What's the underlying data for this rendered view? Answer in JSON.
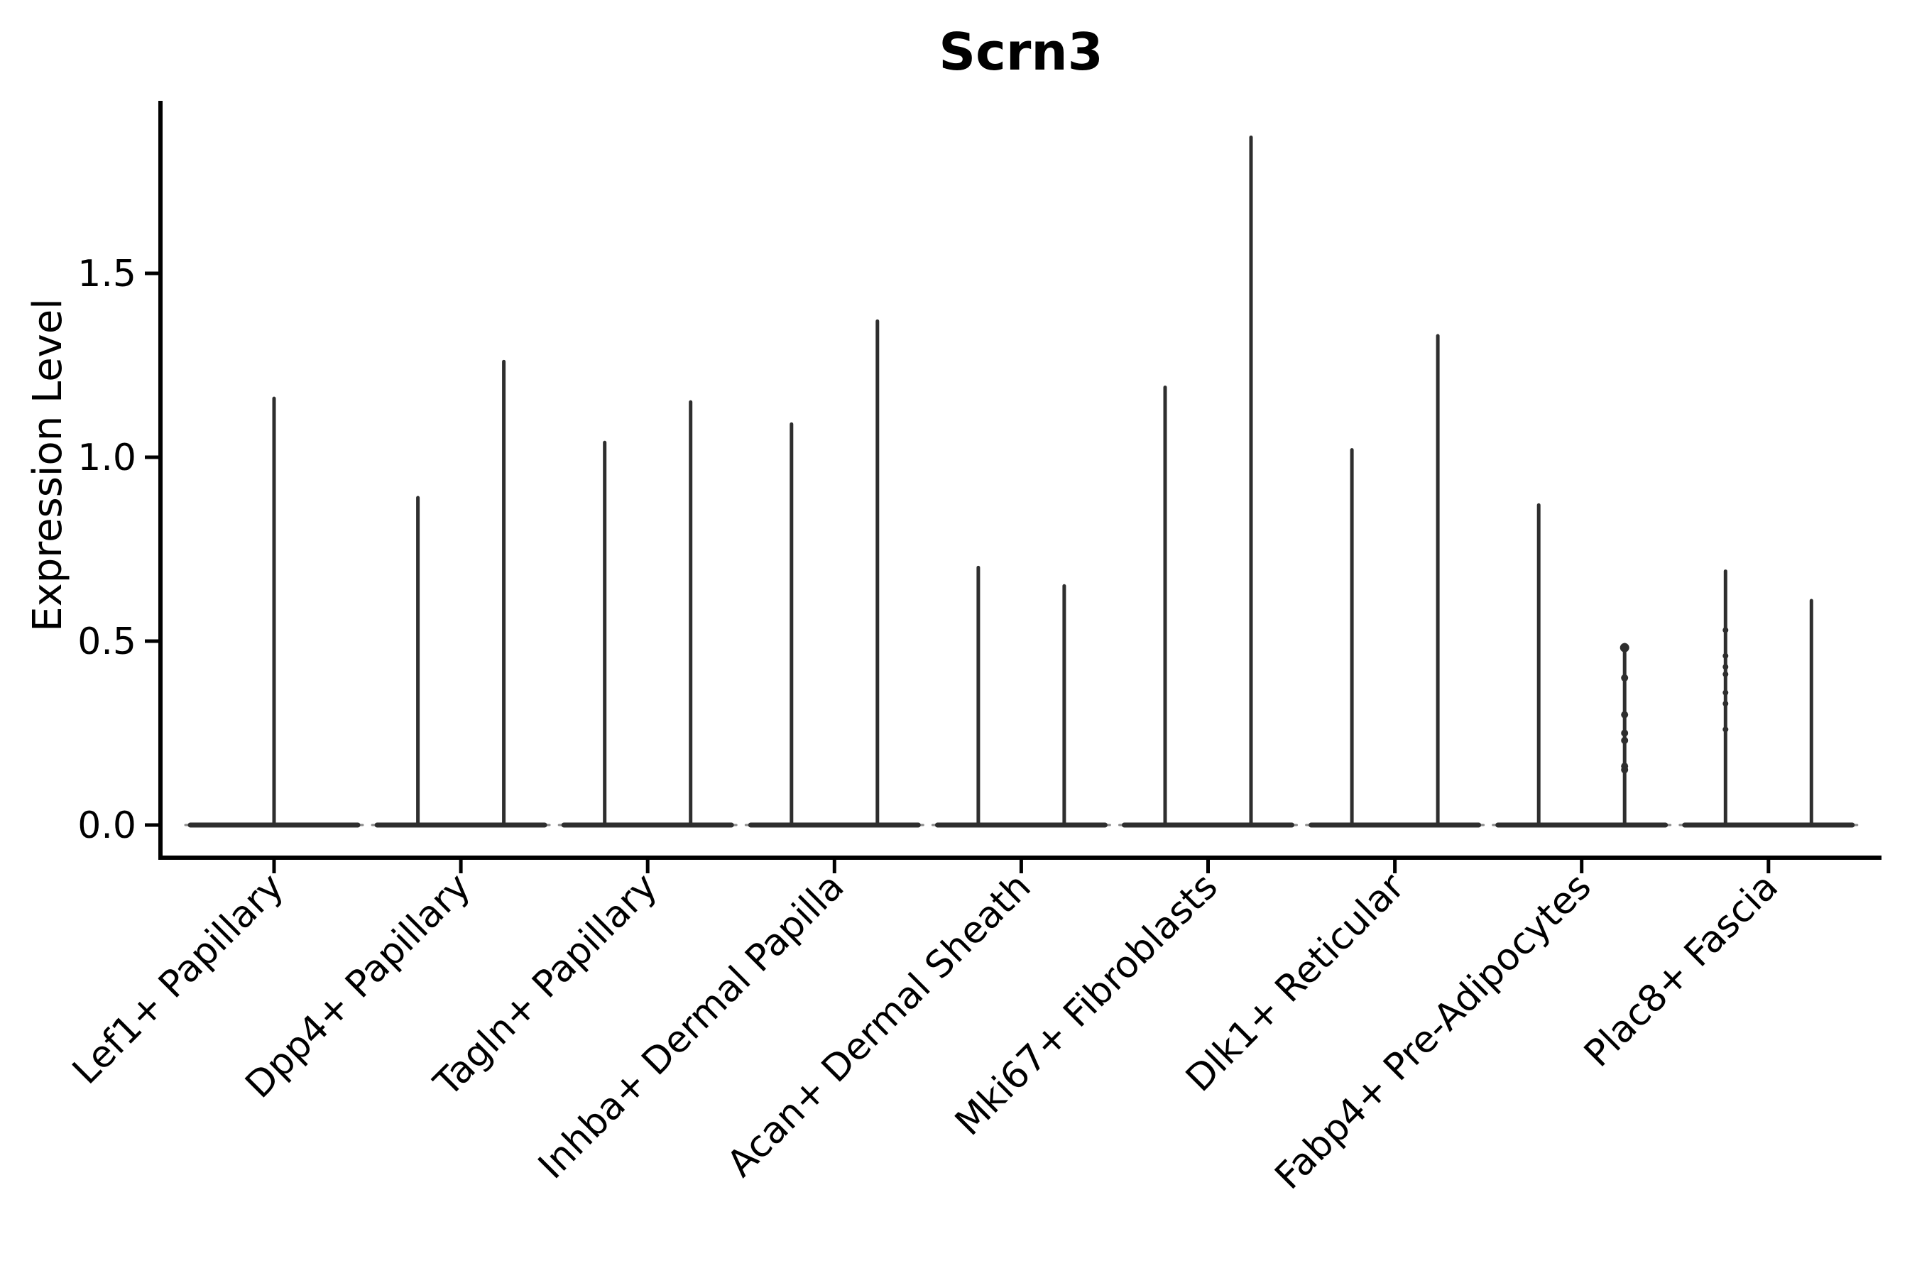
{
  "page": {
    "background": "#ffffff"
  },
  "chart_data": {
    "type": "violin",
    "title": "Scrn3",
    "ylabel": "Expression Level",
    "xlabel": "",
    "ytick_labels": [
      "0.0",
      "0.5",
      "1.0",
      "1.5"
    ],
    "ytick_values": [
      0,
      0.5,
      1.0,
      1.5
    ],
    "ylim": [
      -0.09,
      1.97
    ],
    "grid": false,
    "legend": null,
    "spines": [
      "left",
      "bottom"
    ],
    "x_label_rotation_deg": 45,
    "colors": {
      "axis": "#000000",
      "violin": "#2e2e2e",
      "violin_base_edge": "#8a8a8a",
      "text": "#000000"
    },
    "categories": [
      "Lef1+ Papillary",
      "Dpp4+ Papillary",
      "Tagln+ Papillary",
      "Inhba+ Dermal Papilla",
      "Acan+ Dermal Sheath",
      "Mki67+ Fibroblasts",
      "Dlk1+ Reticular",
      "Fabp4+ Pre-Adipocytes",
      "Plac8+ Fascia"
    ],
    "violins": [
      {
        "category": "Lef1+ Papillary",
        "groups": [
          {
            "position": "center",
            "max": 1.16,
            "points": []
          }
        ]
      },
      {
        "category": "Dpp4+ Papillary",
        "groups": [
          {
            "position": "left",
            "max": 0.89,
            "points": []
          },
          {
            "position": "right",
            "max": 1.26,
            "points": []
          }
        ]
      },
      {
        "category": "Tagln+ Papillary",
        "groups": [
          {
            "position": "left",
            "max": 1.04,
            "points": []
          },
          {
            "position": "right",
            "max": 1.15,
            "points": []
          }
        ]
      },
      {
        "category": "Inhba+ Dermal Papilla",
        "groups": [
          {
            "position": "left",
            "max": 1.09,
            "points": []
          },
          {
            "position": "right",
            "max": 1.37,
            "points": []
          }
        ]
      },
      {
        "category": "Acan+ Dermal Sheath",
        "groups": [
          {
            "position": "left",
            "max": 0.7,
            "points": []
          },
          {
            "position": "right",
            "max": 0.65,
            "points": []
          }
        ]
      },
      {
        "category": "Mki67+ Fibroblasts",
        "groups": [
          {
            "position": "left",
            "max": 1.19,
            "points": []
          },
          {
            "position": "right",
            "max": 1.87,
            "points": []
          }
        ]
      },
      {
        "category": "Dlk1+ Reticular",
        "groups": [
          {
            "position": "left",
            "max": 1.02,
            "points": []
          },
          {
            "position": "right",
            "max": 1.33,
            "points": []
          }
        ]
      },
      {
        "category": "Fabp4+ Pre-Adipocytes",
        "groups": [
          {
            "position": "left",
            "max": 0.87,
            "points": []
          },
          {
            "position": "right",
            "max": 0.49,
            "top_knob": true,
            "point_radius": 5,
            "points": [
              0.4,
              0.3,
              0.25,
              0.23,
              0.16,
              0.15
            ]
          }
        ]
      },
      {
        "category": "Plac8+ Fascia",
        "groups": [
          {
            "position": "left",
            "max": 0.69,
            "point_radius": 4,
            "points": [
              0.53,
              0.46,
              0.43,
              0.41,
              0.36,
              0.33,
              0.26
            ]
          },
          {
            "position": "right",
            "max": 0.61,
            "points": []
          }
        ]
      }
    ]
  }
}
